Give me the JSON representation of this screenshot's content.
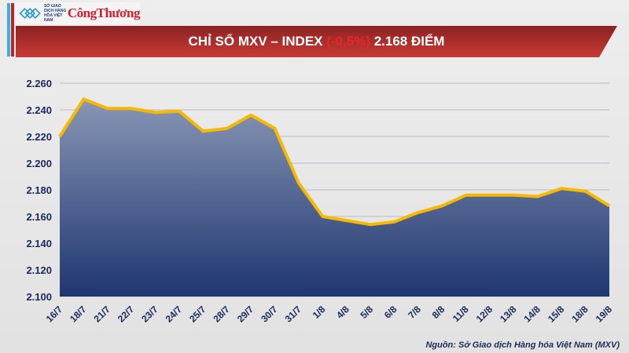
{
  "header": {
    "logo_text": "SỞ GIAO DỊCH HÀNG HÓA VIỆT NAM",
    "brand": "CôngThương"
  },
  "title": {
    "prefix": "CHỈ SỐ MXV – INDEX ",
    "change": "(-0,5%)",
    "suffix": " 2.168 ĐIỂM"
  },
  "source": "Nguồn: Sở Giao dịch Hàng hóa Việt Nam (MXV)",
  "chart_data": {
    "type": "area",
    "categories": [
      "16/7",
      "18/7",
      "21/7",
      "22/7",
      "23/7",
      "24/7",
      "25/7",
      "28/7",
      "29/7",
      "30/7",
      "31/7",
      "1/8",
      "4/8",
      "5/8",
      "6/8",
      "7/8",
      "8/8",
      "11/8",
      "12/8",
      "13/8",
      "14/8",
      "15/8",
      "18/8",
      "19/8"
    ],
    "values": [
      2220,
      2248,
      2241,
      2241,
      2238,
      2239,
      2224,
      2226,
      2236,
      2226,
      2185,
      2160,
      2157,
      2154,
      2156,
      2163,
      2168,
      2176,
      2176,
      2176,
      2175,
      2181,
      2179,
      2168
    ],
    "ylim": [
      2100,
      2260
    ],
    "yticks": [
      "2.100",
      "2.120",
      "2.140",
      "2.160",
      "2.180",
      "2.200",
      "2.220",
      "2.240",
      "2.260"
    ],
    "grid": true,
    "colors": {
      "line": "#f7b800",
      "fill_top": "#8896b4",
      "fill_bottom": "#1f3670",
      "axis_text": "#1a2a5a"
    }
  }
}
